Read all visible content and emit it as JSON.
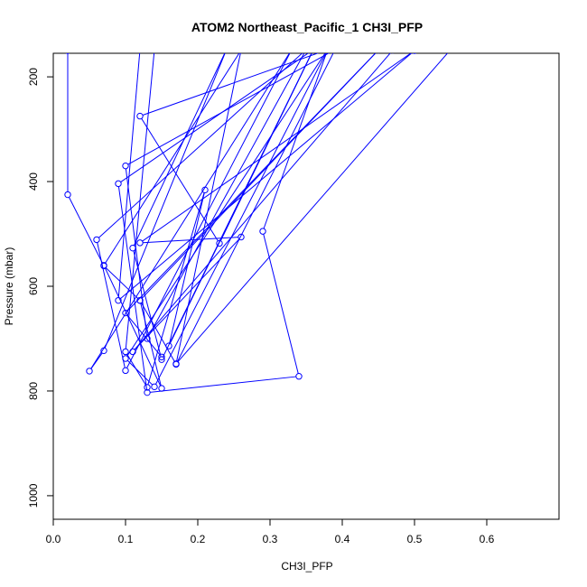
{
  "chart_data": {
    "type": "line",
    "title": "ATOM2 Northeast_Pacific_1 CH3I_PFP",
    "xlabel": "CH3I_PFP",
    "ylabel": "Pressure (mbar)",
    "xlim": [
      0,
      0.7
    ],
    "ylim": [
      1045,
      155
    ],
    "y_reversed": true,
    "x_ticks": [
      0.0,
      0.1,
      0.2,
      0.3,
      0.4,
      0.5,
      0.6
    ],
    "x_tick_labels": [
      "0.0",
      "0.1",
      "0.2",
      "0.3",
      "0.4",
      "0.5",
      "0.6"
    ],
    "y_ticks": [
      200,
      400,
      600,
      800,
      1000
    ],
    "y_tick_labels": [
      "200",
      "400",
      "600",
      "800",
      "1000"
    ],
    "grid": false,
    "legend": "none",
    "line_color": "#0000ff",
    "marker": "open-circle",
    "series": [
      {
        "x": [
          0.02,
          0.02,
          0.07,
          0.12,
          0.17,
          0.39,
          0.1,
          0.13,
          0.35,
          0.06,
          0.1,
          0.33,
          0.05,
          0.07,
          0.24,
          0.11,
          0.15,
          0.36,
          0.09,
          0.13,
          0.34,
          0.29,
          0.38,
          0.1,
          0.14,
          0.38,
          0.12,
          0.23,
          0.36,
          0.16,
          0.21,
          0.13,
          0.1,
          0.14,
          0.47,
          0.11,
          0.26,
          0.12,
          0.5,
          0.09,
          0.12,
          0.55,
          0.17,
          0.26,
          0.07,
          0.15,
          0.12,
          0.45,
          0.1,
          0.15
        ],
        "y": [
          150,
          425,
          561,
          627,
          749,
          148,
          370,
          700,
          148,
          511,
          761,
          148,
          762,
          723,
          147,
          527,
          740,
          148,
          404,
          803,
          772,
          495,
          147,
          738,
          792,
          148,
          275,
          518,
          148,
          714,
          416,
          793,
          725,
          148,
          149,
          725,
          506,
          517,
          150,
          627,
          148,
          148,
          748,
          149,
          560,
          795,
          627,
          149,
          651,
          735
        ]
      }
    ]
  }
}
